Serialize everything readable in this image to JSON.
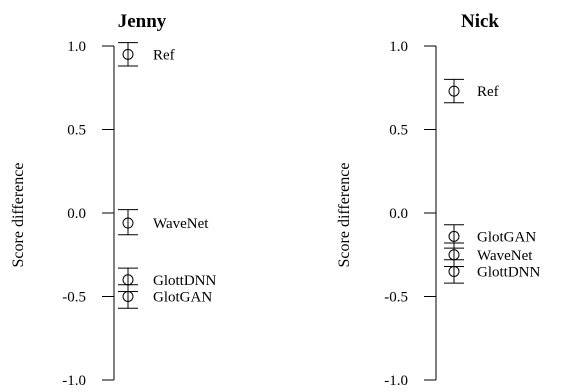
{
  "chart_data": [
    {
      "type": "scatter",
      "title": "Jenny",
      "ylabel": "Score difference",
      "ylim": [
        -1.0,
        1.0
      ],
      "yticks": [
        "1.0",
        "0.5",
        "0.0",
        "-0.5",
        "-1.0"
      ],
      "points": [
        {
          "label": "Ref",
          "value": 0.95,
          "ci_low": 0.88,
          "ci_high": 1.02
        },
        {
          "label": "WaveNet",
          "value": -0.06,
          "ci_low": -0.13,
          "ci_high": 0.02
        },
        {
          "label": "GlottDNN",
          "value": -0.4,
          "ci_low": -0.47,
          "ci_high": -0.33
        },
        {
          "label": "GlotGAN",
          "value": -0.5,
          "ci_low": -0.57,
          "ci_high": -0.43
        }
      ]
    },
    {
      "type": "scatter",
      "title": "Nick",
      "ylabel": "Score difference",
      "ylim": [
        -1.0,
        1.0
      ],
      "yticks": [
        "1.0",
        "0.5",
        "0.0",
        "-0.5",
        "-1.0"
      ],
      "points": [
        {
          "label": "Ref",
          "value": 0.73,
          "ci_low": 0.66,
          "ci_high": 0.8
        },
        {
          "label": "GlotGAN",
          "value": -0.14,
          "ci_low": -0.21,
          "ci_high": -0.07
        },
        {
          "label": "WaveNet",
          "value": -0.25,
          "ci_low": -0.32,
          "ci_high": -0.18
        },
        {
          "label": "GlottDNN",
          "value": -0.35,
          "ci_low": -0.42,
          "ci_high": -0.28
        }
      ]
    }
  ]
}
